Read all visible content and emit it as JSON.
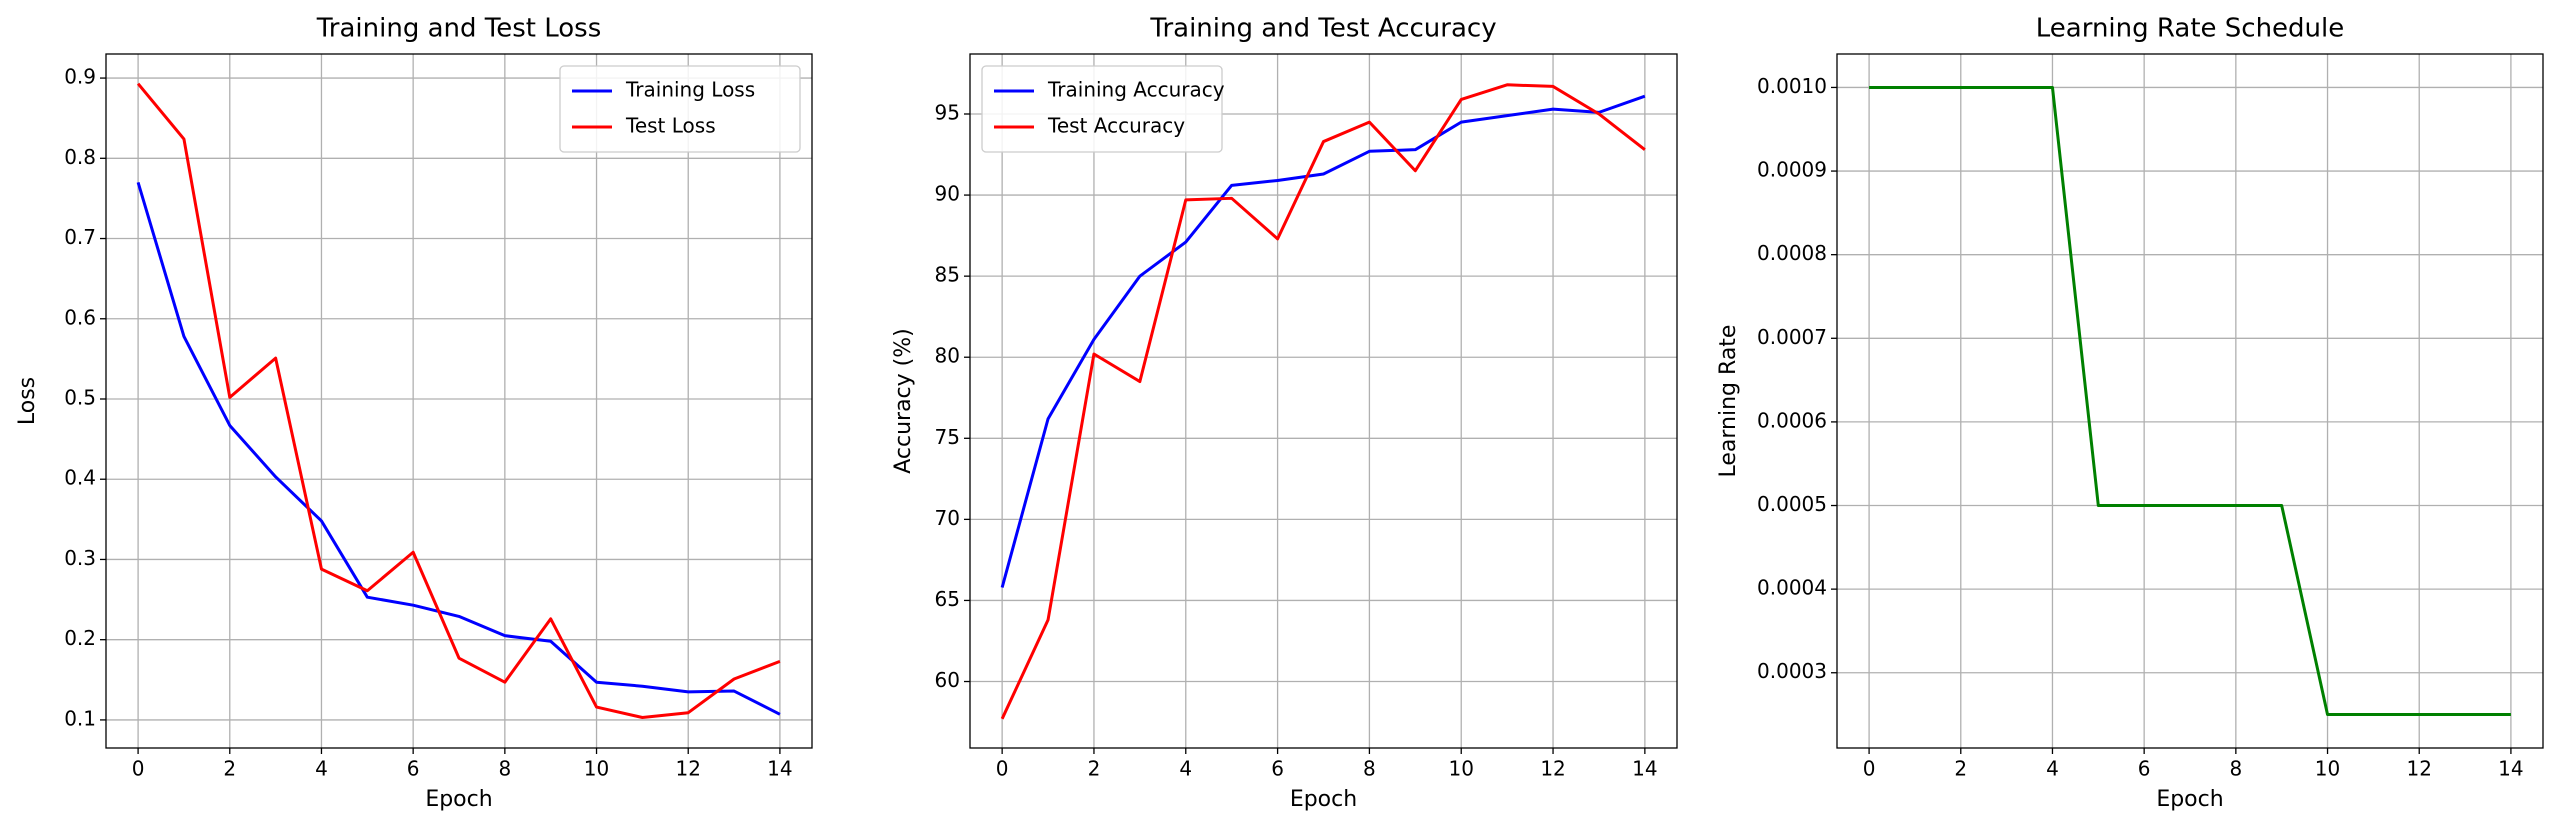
{
  "chart_data": [
    {
      "type": "line",
      "title": "Training and Test Loss",
      "xlabel": "Epoch",
      "ylabel": "Loss",
      "x": [
        0,
        1,
        2,
        3,
        4,
        5,
        6,
        7,
        8,
        9,
        10,
        11,
        12,
        13,
        14
      ],
      "series": [
        {
          "name": "Training Loss",
          "color": "#0000ff",
          "values": [
            0.77,
            0.578,
            0.467,
            0.403,
            0.348,
            0.253,
            0.243,
            0.229,
            0.205,
            0.198,
            0.147,
            0.142,
            0.135,
            0.136,
            0.107
          ]
        },
        {
          "name": "Test Loss",
          "color": "#ff0000",
          "values": [
            0.893,
            0.824,
            0.502,
            0.551,
            0.288,
            0.261,
            0.309,
            0.177,
            0.147,
            0.226,
            0.116,
            0.103,
            0.109,
            0.151,
            0.173
          ]
        }
      ],
      "xlim": [
        -0.7,
        14.7
      ],
      "ylim": [
        0.065,
        0.93
      ],
      "xticks": [
        0,
        2,
        4,
        6,
        8,
        10,
        12,
        14
      ],
      "yticks": [
        0.1,
        0.2,
        0.3,
        0.4,
        0.5,
        0.6,
        0.7,
        0.8,
        0.9
      ],
      "grid": true,
      "legend": "upper right"
    },
    {
      "type": "line",
      "title": "Training and Test Accuracy",
      "xlabel": "Epoch",
      "ylabel": "Accuracy (%)",
      "x": [
        0,
        1,
        2,
        3,
        4,
        5,
        6,
        7,
        8,
        9,
        10,
        11,
        12,
        13,
        14
      ],
      "series": [
        {
          "name": "Training Accuracy",
          "color": "#0000ff",
          "values": [
            65.8,
            76.2,
            81.1,
            85.0,
            87.1,
            90.6,
            90.9,
            91.3,
            92.7,
            92.8,
            94.5,
            94.9,
            95.3,
            95.1,
            96.1
          ]
        },
        {
          "name": "Test Accuracy",
          "color": "#ff0000",
          "values": [
            57.7,
            63.8,
            80.2,
            78.5,
            89.7,
            89.8,
            87.3,
            93.3,
            94.5,
            91.5,
            95.9,
            96.8,
            96.7,
            95.0,
            92.8
          ]
        }
      ],
      "xlim": [
        -0.7,
        14.7
      ],
      "ylim": [
        55.9,
        98.7
      ],
      "xticks": [
        0,
        2,
        4,
        6,
        8,
        10,
        12,
        14
      ],
      "yticks": [
        60,
        65,
        70,
        75,
        80,
        85,
        90,
        95
      ],
      "grid": true,
      "legend": "upper left"
    },
    {
      "type": "line",
      "title": "Learning Rate Schedule",
      "xlabel": "Epoch",
      "ylabel": "Learning Rate",
      "x": [
        0,
        1,
        2,
        3,
        4,
        5,
        6,
        7,
        8,
        9,
        10,
        11,
        12,
        13,
        14
      ],
      "series": [
        {
          "color": "#008000",
          "values": [
            0.001,
            0.001,
            0.001,
            0.001,
            0.001,
            0.0005,
            0.0005,
            0.0005,
            0.0005,
            0.0005,
            0.00025,
            0.00025,
            0.00025,
            0.00025,
            0.00025
          ]
        }
      ],
      "xlim": [
        -0.7,
        14.7
      ],
      "ylim": [
        0.00021,
        0.00104
      ],
      "xticks": [
        0,
        2,
        4,
        6,
        8,
        10,
        12,
        14
      ],
      "yticks": [
        {
          "value": 0.0003,
          "label": "0.0003"
        },
        {
          "value": 0.0004,
          "label": "0.0004"
        },
        {
          "value": 0.0005,
          "label": "0.0005"
        },
        {
          "value": 0.0006,
          "label": "0.0006"
        },
        {
          "value": 0.0007,
          "label": "0.0007"
        },
        {
          "value": 0.0008,
          "label": "0.0008"
        },
        {
          "value": 0.0009,
          "label": "0.0009"
        },
        {
          "value": 0.001,
          "label": "0.0010"
        }
      ],
      "grid": true
    }
  ]
}
